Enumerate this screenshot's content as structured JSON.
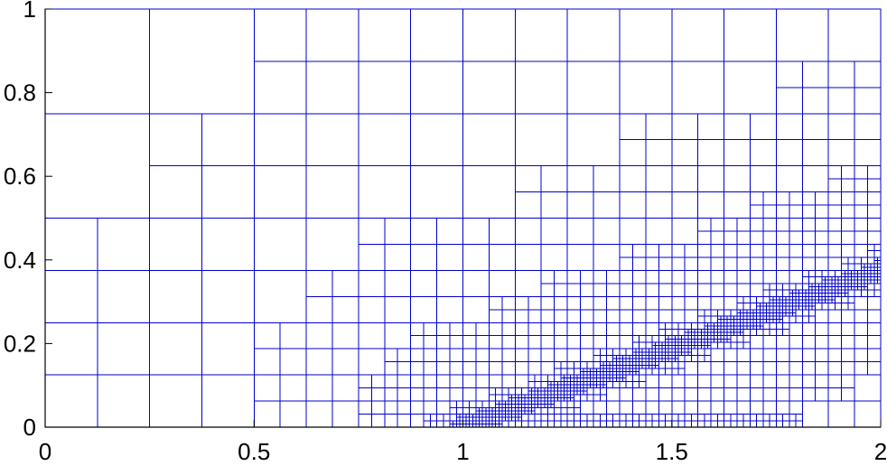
{
  "chart_data": {
    "type": "diagram",
    "description_free": true,
    "x_ticks": [
      "0",
      "0.5",
      "1",
      "1.5",
      "2"
    ],
    "x_tick_values": [
      0,
      0.5,
      1,
      1.5,
      2
    ],
    "y_ticks": [
      "0",
      "0.2",
      "0.4",
      "0.6",
      "0.8",
      "1"
    ],
    "y_tick_values": [
      0,
      0.2,
      0.4,
      0.6,
      0.8,
      1
    ],
    "xlim": [
      0,
      2
    ],
    "ylim": [
      0,
      1
    ],
    "mesh_color": "#0000cc",
    "axis_color": "#000000",
    "refinement": {
      "root_cell_size": 0.5,
      "min_level": 1,
      "max_level": 7,
      "feature_line": {
        "x0": 1.0,
        "y0": 0.0,
        "x1": 2.0,
        "y1": 0.375
      },
      "bottom_boundary_band": {
        "x_from": 0.75,
        "x_to": 2.0
      }
    }
  }
}
